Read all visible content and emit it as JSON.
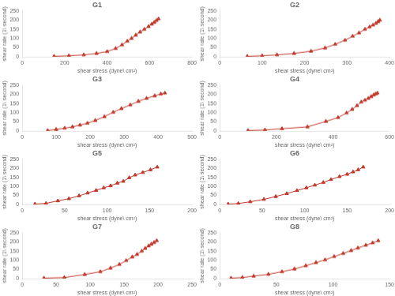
{
  "chart_data": [
    {
      "type": "line",
      "title": "G1",
      "xlabel": "shear stress (dyne\\ cm²)",
      "ylabel": "shear rate (1\\ second)",
      "xlim": [
        0,
        800
      ],
      "ylim": [
        0,
        250
      ],
      "xticks": [
        0,
        200,
        400,
        600,
        800
      ],
      "yticks": [
        0,
        50,
        100,
        150,
        200,
        250
      ],
      "grid": false,
      "color": "#C0392B",
      "marker": "triangle",
      "x": [
        150,
        220,
        290,
        350,
        400,
        440,
        470,
        495,
        515,
        535,
        555,
        575,
        595,
        610,
        622,
        632,
        642
      ],
      "values": [
        2,
        5,
        10,
        18,
        28,
        45,
        65,
        85,
        100,
        118,
        135,
        150,
        165,
        178,
        188,
        198,
        207
      ]
    },
    {
      "type": "line",
      "title": "G2",
      "xlabel": "shear stress (dyne\\ cm²)",
      "ylabel": "shear rate (1\\ second)",
      "xlim": [
        0,
        400
      ],
      "ylim": [
        0,
        250
      ],
      "xticks": [
        0,
        100,
        200,
        300,
        400
      ],
      "yticks": [
        0,
        50,
        100,
        150,
        200,
        250
      ],
      "grid": false,
      "color": "#C0392B",
      "marker": "triangle",
      "x": [
        65,
        100,
        135,
        175,
        215,
        248,
        272,
        295,
        313,
        328,
        342,
        353,
        361,
        368,
        373,
        377
      ],
      "values": [
        2,
        5,
        10,
        18,
        30,
        48,
        68,
        90,
        112,
        130,
        150,
        163,
        173,
        183,
        192,
        200
      ]
    },
    {
      "type": "line",
      "title": "G3",
      "xlabel": "shear stress (dyne\\ cm²)",
      "ylabel": "shear rate (1\\ second)",
      "xlim": [
        0,
        500
      ],
      "ylim": [
        0,
        250
      ],
      "xticks": [
        0,
        100,
        200,
        300,
        400,
        500
      ],
      "yticks": [
        0,
        50,
        100,
        150,
        200,
        250
      ],
      "grid": false,
      "color": "#C0392B",
      "marker": "triangle",
      "x": [
        75,
        100,
        125,
        148,
        170,
        192,
        215,
        242,
        268,
        292,
        318,
        342,
        366,
        390,
        408,
        420
      ],
      "values": [
        2,
        8,
        15,
        22,
        32,
        42,
        57,
        78,
        102,
        122,
        142,
        162,
        178,
        192,
        202,
        207
      ]
    },
    {
      "type": "line",
      "title": "G4",
      "xlabel": "shear stress (dyne\\ cm²)",
      "ylabel": "shear rate (1\\ second)",
      "xlim": [
        0,
        600
      ],
      "ylim": [
        0,
        250
      ],
      "xticks": [
        0,
        200,
        400,
        600
      ],
      "yticks": [
        0,
        50,
        100,
        150,
        200,
        250
      ],
      "grid": false,
      "color": "#C0392B",
      "marker": "triangle",
      "x": [
        100,
        160,
        220,
        310,
        375,
        418,
        448,
        468,
        485,
        500,
        513,
        525,
        535,
        544,
        551,
        557
      ],
      "values": [
        2,
        5,
        12,
        22,
        52,
        73,
        98,
        118,
        138,
        158,
        168,
        178,
        188,
        197,
        202,
        207
      ]
    },
    {
      "type": "line",
      "title": "G5",
      "xlabel": "shear stress (dyne\\ cm²)",
      "ylabel": "shear rate (1\\ second)",
      "xlim": [
        0,
        200
      ],
      "ylim": [
        0,
        250
      ],
      "xticks": [
        0,
        50,
        100,
        150,
        200
      ],
      "yticks": [
        0,
        50,
        100,
        150,
        200,
        250
      ],
      "grid": false,
      "color": "#C0392B",
      "marker": "triangle",
      "x": [
        15,
        28,
        42,
        55,
        67,
        77,
        87,
        96,
        104,
        112,
        119,
        126,
        133,
        142,
        151,
        159
      ],
      "values": [
        2,
        6,
        20,
        32,
        48,
        63,
        78,
        92,
        103,
        118,
        128,
        148,
        163,
        177,
        192,
        207
      ]
    },
    {
      "type": "line",
      "title": "G6",
      "xlabel": "shear stress (dyne\\ cm²)",
      "ylabel": "shear rate (1\\ second)",
      "xlim": [
        0,
        200
      ],
      "ylim": [
        0,
        250
      ],
      "xticks": [
        0,
        50,
        100,
        150,
        200
      ],
      "yticks": [
        0,
        50,
        100,
        150,
        200,
        250
      ],
      "grid": false,
      "color": "#C0392B",
      "marker": "triangle",
      "x": [
        10,
        22,
        36,
        52,
        66,
        79,
        91,
        102,
        112,
        122,
        131,
        141,
        150,
        157,
        163,
        169
      ],
      "values": [
        2,
        5,
        15,
        28,
        44,
        60,
        77,
        92,
        107,
        122,
        138,
        154,
        167,
        180,
        192,
        207
      ]
    },
    {
      "type": "line",
      "title": "G7",
      "xlabel": "shear stress (dyne\\ cm²)",
      "ylabel": "shear rate (1\\ second)",
      "xlim": [
        0,
        250
      ],
      "ylim": [
        0,
        250
      ],
      "xticks": [
        0,
        50,
        100,
        150,
        200,
        250
      ],
      "yticks": [
        0,
        50,
        100,
        150,
        200,
        250
      ],
      "grid": false,
      "color": "#C0392B",
      "marker": "triangle",
      "x": [
        32,
        62,
        92,
        115,
        130,
        143,
        153,
        162,
        169,
        176,
        181,
        186,
        190,
        194,
        198
      ],
      "values": [
        2,
        5,
        22,
        37,
        57,
        77,
        98,
        118,
        132,
        150,
        165,
        178,
        188,
        197,
        207
      ]
    },
    {
      "type": "line",
      "title": "G8",
      "xlabel": "shear stress (dyne\\ cm²)",
      "ylabel": "shear rate (1\\ second)",
      "xlim": [
        0,
        150
      ],
      "ylim": [
        0,
        250
      ],
      "xticks": [
        0,
        50,
        100,
        150
      ],
      "yticks": [
        0,
        50,
        100,
        150,
        200,
        250
      ],
      "grid": false,
      "color": "#C0392B",
      "marker": "triangle",
      "x": [
        10,
        20,
        30,
        43,
        55,
        66,
        76,
        85,
        93,
        101,
        109,
        116,
        122,
        129,
        135,
        140
      ],
      "values": [
        2,
        5,
        13,
        23,
        37,
        52,
        70,
        87,
        102,
        120,
        137,
        153,
        167,
        182,
        195,
        207
      ]
    }
  ]
}
